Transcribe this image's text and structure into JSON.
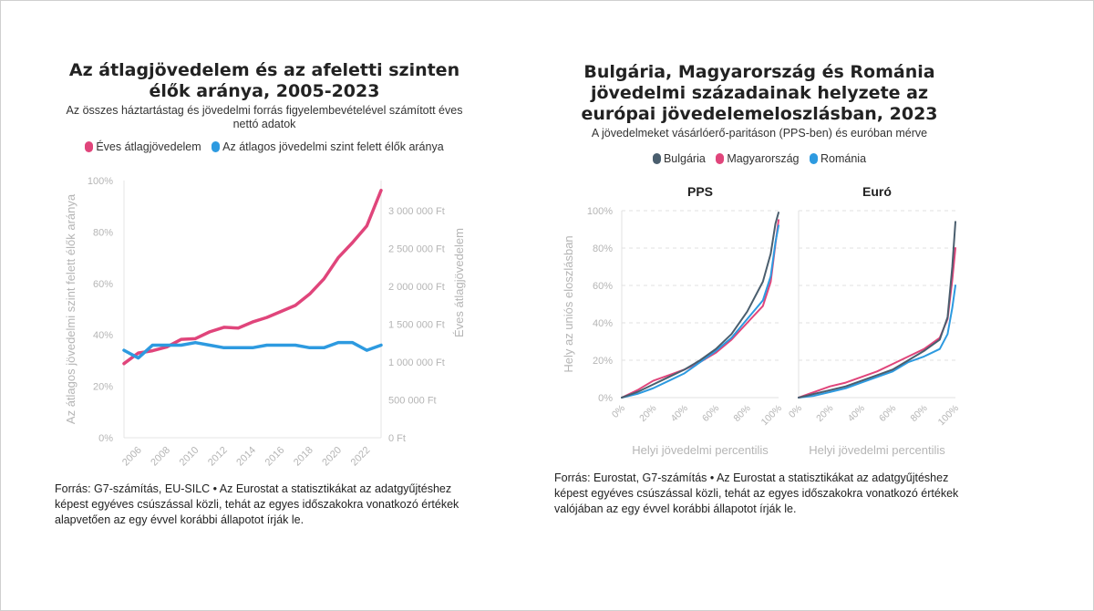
{
  "left": {
    "title": "Az átlagjövedelem és az afeletti szinten élők aránya, 2005-2023",
    "subtitle": "Az összes háztartástag és jövedelmi forrás figyelembevételével számított éves nettó adatok",
    "legend": [
      {
        "label": "Éves átlagjövedelem",
        "color": "#e0457b"
      },
      {
        "label": "Az átlagos jövedelmi szint felett élők aránya",
        "color": "#2d9ae0"
      }
    ],
    "source": "Forrás: G7-számítás, EU-SILC • Az Eurostat a statisztikákat az adatgyűjtéshez képest egyéves csúszással közli, tehát az egyes időszakokra vonatkozó értékek alapvetően az egy évvel korábbi állapotot írják le."
  },
  "right": {
    "title": "Bulgária, Magyarország és Románia jövedelmi századainak helyzete az európai jövedelemeloszlásban, 2023",
    "subtitle": "A jövedelmeket vásárlóerő-paritáson (PPS-ben) és euróban mérve",
    "legend": [
      {
        "label": "Bulgária",
        "color": "#4a5e6e"
      },
      {
        "label": "Magyarország",
        "color": "#e0457b"
      },
      {
        "label": "Románia",
        "color": "#2d9ae0"
      }
    ],
    "source": "Forrás: Eurostat, G7-számítás • Az Eurostat a statisztikákat az adatgyűjtéshez képest egyéves csúszással közli, tehát az egyes időszakokra vonatkozó értékek valójában az egy évvel korábbi állapotot írják le."
  },
  "chart_data": [
    {
      "type": "line",
      "title": "Az átlagjövedelem és az afeletti szinten élők aránya, 2005-2023",
      "subtitle": "Az összes háztartástag és jövedelmi forrás figyelembevételével számított éves nettó adatok",
      "ylabel": "Az átlagos jövedelmi szint felett élők aránya",
      "y2label": "Éves átlagjövedelem",
      "xlim": [
        2005,
        2023
      ],
      "ylim": [
        0,
        100
      ],
      "y2lim": [
        0,
        3400000
      ],
      "x_ticks": [
        "2006",
        "2008",
        "2010",
        "2012",
        "2014",
        "2016",
        "2018",
        "2020",
        "2022"
      ],
      "y_ticks": [
        "0%",
        "20%",
        "40%",
        "60%",
        "80%",
        "100%"
      ],
      "y2_ticks": [
        "0 Ft",
        "500 000 Ft",
        "1 000 000 Ft",
        "1 500 000 Ft",
        "2 000 000 Ft",
        "2 500 000 Ft",
        "3 000 000 Ft"
      ],
      "x": [
        2005,
        2006,
        2007,
        2008,
        2009,
        2010,
        2011,
        2012,
        2013,
        2014,
        2015,
        2016,
        2017,
        2018,
        2019,
        2020,
        2021,
        2022,
        2023
      ],
      "series": [
        {
          "name": "Éves átlagjövedelem",
          "axis": "right",
          "color": "#e0457b",
          "values": [
            980000,
            1120000,
            1150000,
            1200000,
            1300000,
            1310000,
            1400000,
            1460000,
            1450000,
            1530000,
            1590000,
            1670000,
            1750000,
            1900000,
            2100000,
            2380000,
            2580000,
            2800000,
            3270000
          ]
        },
        {
          "name": "Az átlagos jövedelmi szint felett élők aránya",
          "axis": "left",
          "color": "#2d9ae0",
          "values": [
            34,
            31,
            36,
            36,
            36,
            37,
            36,
            35,
            35,
            35,
            36,
            36,
            36,
            35,
            35,
            37,
            37,
            34,
            36
          ]
        }
      ]
    },
    {
      "type": "line",
      "title": "PPS",
      "xlabel": "Helyi jövedelmi percentilis",
      "ylabel": "Hely az uniós eloszlásban",
      "xlim": [
        0,
        100
      ],
      "ylim": [
        0,
        100
      ],
      "x_ticks": [
        "0%",
        "20%",
        "40%",
        "60%",
        "80%",
        "100%"
      ],
      "y_ticks": [
        "0%",
        "20%",
        "40%",
        "60%",
        "80%",
        "100%"
      ],
      "x": [
        0,
        10,
        20,
        30,
        40,
        50,
        60,
        70,
        80,
        90,
        95,
        98,
        100
      ],
      "series": [
        {
          "name": "Bulgária",
          "color": "#4a5e6e",
          "values": [
            0,
            3,
            7,
            11,
            15,
            20,
            26,
            34,
            46,
            62,
            77,
            93,
            99
          ]
        },
        {
          "name": "Magyarország",
          "color": "#e0457b",
          "values": [
            0,
            4,
            9,
            12,
            15,
            19,
            24,
            31,
            40,
            49,
            62,
            82,
            95
          ]
        },
        {
          "name": "Románia",
          "color": "#2d9ae0",
          "values": [
            0,
            2,
            5,
            9,
            13,
            19,
            25,
            32,
            42,
            52,
            65,
            83,
            92
          ]
        }
      ]
    },
    {
      "type": "line",
      "title": "Euró",
      "xlabel": "Helyi jövedelmi percentilis",
      "xlim": [
        0,
        100
      ],
      "ylim": [
        0,
        100
      ],
      "x_ticks": [
        "0%",
        "20%",
        "40%",
        "60%",
        "80%",
        "100%"
      ],
      "x": [
        0,
        10,
        20,
        30,
        40,
        50,
        60,
        70,
        80,
        90,
        95,
        98,
        100
      ],
      "series": [
        {
          "name": "Bulgária",
          "color": "#4a5e6e",
          "values": [
            0,
            2,
            4,
            6,
            9,
            12,
            15,
            20,
            25,
            31,
            43,
            70,
            94
          ]
        },
        {
          "name": "Magyarország",
          "color": "#e0457b",
          "values": [
            0,
            3,
            6,
            8,
            11,
            14,
            18,
            22,
            26,
            32,
            42,
            63,
            80
          ]
        },
        {
          "name": "Románia",
          "color": "#2d9ae0",
          "values": [
            0,
            1,
            3,
            5,
            8,
            11,
            14,
            19,
            22,
            26,
            34,
            48,
            60
          ]
        }
      ]
    }
  ]
}
